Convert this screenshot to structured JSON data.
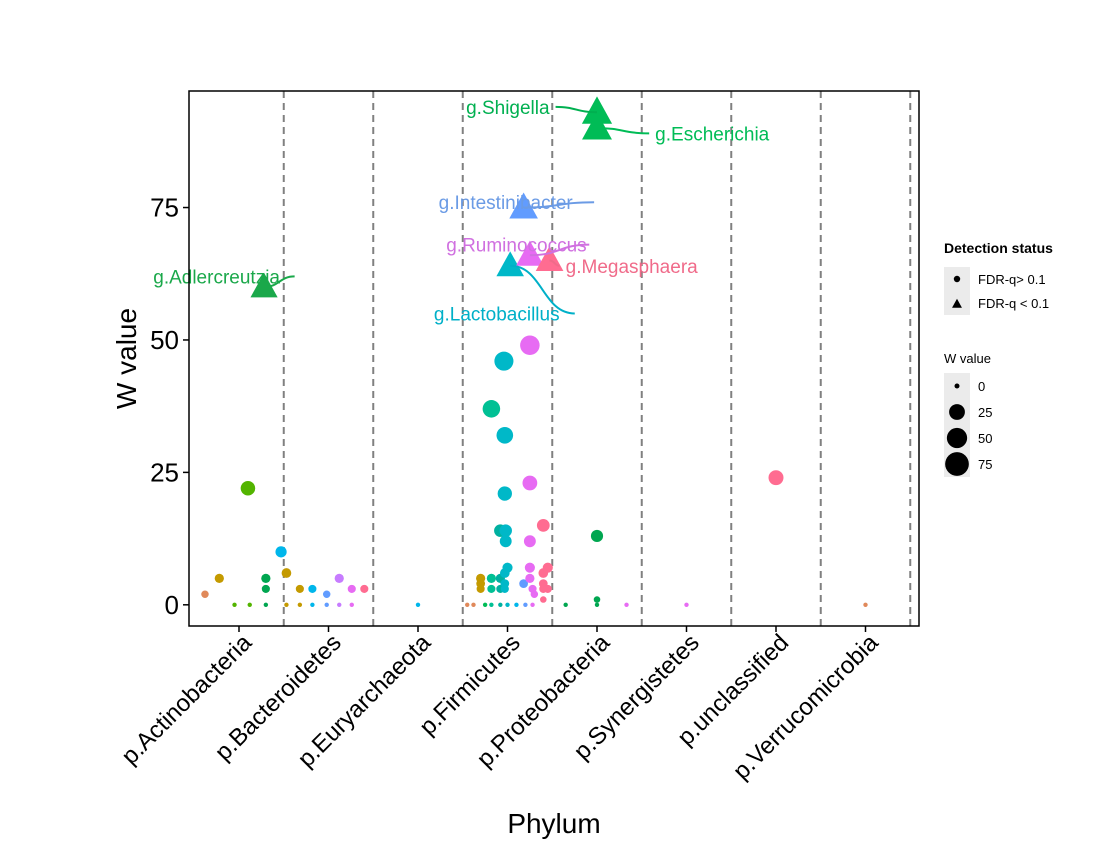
{
  "chart_data": {
    "type": "scatter",
    "title": "",
    "xlabel": "Phylum",
    "ylabel": "W value",
    "ylim": [
      -4,
      97
    ],
    "yticks": [
      0,
      25,
      50,
      75
    ],
    "categories": [
      "p.Actinobacteria",
      "p.Bacteroidetes",
      "p.Euryarchaeota",
      "p.Firmicutes",
      "p.Proteobacteria",
      "p.Synergistetes",
      "p.unclassified",
      "p.Verrucomicrobia"
    ],
    "colors": {
      "orange": "#e0895a",
      "olive": "#c49a00",
      "green": "#53b400",
      "teal": "#00c094",
      "cyan": "#00b6eb",
      "blue": "#619cff",
      "violet": "#c77cff",
      "magenta": "#e76bf3",
      "pink": "#ff6c91",
      "darkgreen": "#00a650",
      "tealgreen": "#00bc56",
      "darkteal": "#00b0a0",
      "lacto": "#00b8c8",
      "annoGreen": "#1aa84a",
      "annoGreen2": "#00b050",
      "annoBlue": "#6b9be5",
      "annoViolet": "#d070e0",
      "annoPink": "#f06b8a",
      "annoCyan": "#00b0c8"
    },
    "points": [
      {
        "c": 0,
        "o": -0.38,
        "y": 2,
        "col": "orange",
        "s": "circle"
      },
      {
        "c": 0,
        "o": -0.22,
        "y": 5,
        "col": "olive",
        "s": "circle"
      },
      {
        "c": 0,
        "o": -0.05,
        "y": 0,
        "col": "green",
        "s": "circle"
      },
      {
        "c": 0,
        "o": 0.12,
        "y": 0,
        "col": "green",
        "s": "circle"
      },
      {
        "c": 0,
        "o": 0.1,
        "y": 22,
        "col": "green",
        "s": "circle"
      },
      {
        "c": 0,
        "o": 0.3,
        "y": 0,
        "col": "darkgreen",
        "s": "circle"
      },
      {
        "c": 0,
        "o": 0.3,
        "y": 3,
        "col": "darkgreen",
        "s": "circle"
      },
      {
        "c": 0,
        "o": 0.3,
        "y": 5,
        "col": "darkgreen",
        "s": "circle"
      },
      {
        "c": 0,
        "o": 0.47,
        "y": 10,
        "col": "cyan",
        "s": "circle"
      },
      {
        "c": 0,
        "o": 0.28,
        "y": 60,
        "col": "annoGreen",
        "s": "triangle"
      },
      {
        "c": 1,
        "o": -0.47,
        "y": 6,
        "col": "olive",
        "s": "circle"
      },
      {
        "c": 1,
        "o": -0.47,
        "y": 0,
        "col": "olive",
        "s": "circle"
      },
      {
        "c": 1,
        "o": -0.32,
        "y": 3,
        "col": "olive",
        "s": "circle"
      },
      {
        "c": 1,
        "o": -0.32,
        "y": 0,
        "col": "olive",
        "s": "circle"
      },
      {
        "c": 1,
        "o": -0.18,
        "y": 3,
        "col": "cyan",
        "s": "circle"
      },
      {
        "c": 1,
        "o": -0.18,
        "y": 0,
        "col": "cyan",
        "s": "circle"
      },
      {
        "c": 1,
        "o": -0.02,
        "y": 2,
        "col": "blue",
        "s": "circle"
      },
      {
        "c": 1,
        "o": -0.02,
        "y": 0,
        "col": "blue",
        "s": "circle"
      },
      {
        "c": 1,
        "o": 0.12,
        "y": 5,
        "col": "violet",
        "s": "circle"
      },
      {
        "c": 1,
        "o": 0.12,
        "y": 0,
        "col": "violet",
        "s": "circle"
      },
      {
        "c": 1,
        "o": 0.26,
        "y": 3,
        "col": "magenta",
        "s": "circle"
      },
      {
        "c": 1,
        "o": 0.26,
        "y": 0,
        "col": "magenta",
        "s": "circle"
      },
      {
        "c": 1,
        "o": 0.4,
        "y": 3,
        "col": "pink",
        "s": "circle"
      },
      {
        "c": 2,
        "o": 0.0,
        "y": 0,
        "col": "cyan",
        "s": "circle"
      },
      {
        "c": 3,
        "o": -0.45,
        "y": 0,
        "col": "orange",
        "s": "circle"
      },
      {
        "c": 3,
        "o": -0.38,
        "y": 0,
        "col": "orange",
        "s": "circle"
      },
      {
        "c": 3,
        "o": -0.3,
        "y": 5,
        "col": "olive",
        "s": "circle"
      },
      {
        "c": 3,
        "o": -0.3,
        "y": 4,
        "col": "olive",
        "s": "circle"
      },
      {
        "c": 3,
        "o": -0.3,
        "y": 3,
        "col": "olive",
        "s": "circle"
      },
      {
        "c": 3,
        "o": -0.25,
        "y": 0,
        "col": "tealgreen",
        "s": "circle"
      },
      {
        "c": 3,
        "o": -0.18,
        "y": 37,
        "col": "teal",
        "s": "circle"
      },
      {
        "c": 3,
        "o": -0.18,
        "y": 5,
        "col": "teal",
        "s": "circle"
      },
      {
        "c": 3,
        "o": -0.18,
        "y": 3,
        "col": "teal",
        "s": "circle"
      },
      {
        "c": 3,
        "o": -0.18,
        "y": 0,
        "col": "teal",
        "s": "circle"
      },
      {
        "c": 3,
        "o": -0.08,
        "y": 14,
        "col": "darkteal",
        "s": "circle"
      },
      {
        "c": 3,
        "o": -0.08,
        "y": 5,
        "col": "darkteal",
        "s": "circle"
      },
      {
        "c": 3,
        "o": -0.08,
        "y": 3,
        "col": "darkteal",
        "s": "circle"
      },
      {
        "c": 3,
        "o": -0.08,
        "y": 0,
        "col": "darkteal",
        "s": "circle"
      },
      {
        "c": 3,
        "o": -0.04,
        "y": 46,
        "col": "lacto",
        "s": "circle"
      },
      {
        "c": 3,
        "o": -0.03,
        "y": 32,
        "col": "lacto",
        "s": "circle"
      },
      {
        "c": 3,
        "o": -0.03,
        "y": 21,
        "col": "lacto",
        "s": "circle"
      },
      {
        "c": 3,
        "o": -0.02,
        "y": 14,
        "col": "lacto",
        "s": "circle"
      },
      {
        "c": 3,
        "o": -0.02,
        "y": 12,
        "col": "lacto",
        "s": "circle"
      },
      {
        "c": 3,
        "o": 0.0,
        "y": 7,
        "col": "lacto",
        "s": "circle"
      },
      {
        "c": 3,
        "o": -0.03,
        "y": 6,
        "col": "lacto",
        "s": "circle"
      },
      {
        "c": 3,
        "o": -0.03,
        "y": 4,
        "col": "lacto",
        "s": "circle"
      },
      {
        "c": 3,
        "o": -0.03,
        "y": 3,
        "col": "lacto",
        "s": "circle"
      },
      {
        "c": 3,
        "o": 0.0,
        "y": 0,
        "col": "lacto",
        "s": "circle"
      },
      {
        "c": 3,
        "o": 0.1,
        "y": 0,
        "col": "cyan",
        "s": "circle"
      },
      {
        "c": 3,
        "o": 0.18,
        "y": 4,
        "col": "blue",
        "s": "circle"
      },
      {
        "c": 3,
        "o": 0.2,
        "y": 0,
        "col": "blue",
        "s": "circle"
      },
      {
        "c": 3,
        "o": 0.25,
        "y": 49,
        "col": "magenta",
        "s": "circle"
      },
      {
        "c": 3,
        "o": 0.25,
        "y": 23,
        "col": "magenta",
        "s": "circle"
      },
      {
        "c": 3,
        "o": 0.25,
        "y": 12,
        "col": "magenta",
        "s": "circle"
      },
      {
        "c": 3,
        "o": 0.25,
        "y": 7,
        "col": "magenta",
        "s": "circle"
      },
      {
        "c": 3,
        "o": 0.25,
        "y": 5,
        "col": "magenta",
        "s": "circle"
      },
      {
        "c": 3,
        "o": 0.28,
        "y": 3,
        "col": "magenta",
        "s": "circle"
      },
      {
        "c": 3,
        "o": 0.3,
        "y": 2,
        "col": "magenta",
        "s": "circle"
      },
      {
        "c": 3,
        "o": 0.28,
        "y": 0,
        "col": "magenta",
        "s": "circle"
      },
      {
        "c": 3,
        "o": 0.4,
        "y": 15,
        "col": "pink",
        "s": "circle"
      },
      {
        "c": 3,
        "o": 0.4,
        "y": 6,
        "col": "pink",
        "s": "circle"
      },
      {
        "c": 3,
        "o": 0.4,
        "y": 4,
        "col": "pink",
        "s": "circle"
      },
      {
        "c": 3,
        "o": 0.4,
        "y": 3,
        "col": "pink",
        "s": "circle"
      },
      {
        "c": 3,
        "o": 0.45,
        "y": 7,
        "col": "pink",
        "s": "circle"
      },
      {
        "c": 3,
        "o": 0.45,
        "y": 3,
        "col": "pink",
        "s": "circle"
      },
      {
        "c": 3,
        "o": 0.4,
        "y": 1,
        "col": "pink",
        "s": "circle"
      },
      {
        "c": 3,
        "o": 0.03,
        "y": 64,
        "col": "lacto",
        "s": "triangle"
      },
      {
        "c": 3,
        "o": 0.25,
        "y": 66,
        "col": "magenta",
        "s": "triangle"
      },
      {
        "c": 3,
        "o": 0.18,
        "y": 75,
        "col": "blue",
        "s": "triangle"
      },
      {
        "c": 3,
        "o": 0.47,
        "y": 65,
        "col": "pink",
        "s": "triangle"
      },
      {
        "c": 4,
        "o": -0.35,
        "y": 0,
        "col": "darkgreen",
        "s": "circle"
      },
      {
        "c": 4,
        "o": 0.0,
        "y": 13,
        "col": "darkgreen",
        "s": "circle"
      },
      {
        "c": 4,
        "o": 0.0,
        "y": 1,
        "col": "darkgreen",
        "s": "circle"
      },
      {
        "c": 4,
        "o": 0.0,
        "y": 0,
        "col": "darkgreen",
        "s": "circle"
      },
      {
        "c": 4,
        "o": 0.33,
        "y": 0,
        "col": "magenta",
        "s": "circle"
      },
      {
        "c": 4,
        "o": 0.0,
        "y": 93,
        "col": "tealgreen",
        "s": "triangle"
      },
      {
        "c": 4,
        "o": 0.0,
        "y": 90,
        "col": "tealgreen",
        "s": "triangle"
      },
      {
        "c": 5,
        "o": 0.0,
        "y": 0,
        "col": "magenta",
        "s": "circle"
      },
      {
        "c": 6,
        "o": 0.0,
        "y": 24,
        "col": "pink",
        "s": "circle"
      },
      {
        "c": 7,
        "o": 0.0,
        "y": 0,
        "col": "orange",
        "s": "circle"
      }
    ],
    "annotations": [
      {
        "text": "g.Shigella",
        "col": "annoGreen2",
        "pt": 75,
        "tc": 3.47,
        "ty": 94,
        "anchor": "end",
        "size": 19
      },
      {
        "text": "g.Escherichia",
        "col": "tealgreen",
        "pt": 76,
        "tc": 4.65,
        "ty": 89,
        "anchor": "start",
        "size": 22
      },
      {
        "text": "g.Intestinibacter",
        "col": "annoBlue",
        "pt": 68,
        "tc": 2.98,
        "ty": 76,
        "anchor": "middle",
        "size": 19
      },
      {
        "text": "g.Ruminococcus",
        "col": "annoViolet",
        "pt": 67,
        "tc": 3.1,
        "ty": 68,
        "anchor": "middle",
        "size": 19
      },
      {
        "text": "g.Megasphaera",
        "col": "annoPink",
        "pt": 69,
        "tc": 3.65,
        "ty": 64,
        "anchor": "start",
        "size": 19
      },
      {
        "text": "g.Lactobacillus",
        "col": "annoCyan",
        "pt": 66,
        "tc": 2.88,
        "ty": 55,
        "anchor": "middle",
        "size": 19
      },
      {
        "text": "g.Adlercreutzia",
        "col": "annoGreen",
        "pt": 9,
        "tc": -0.25,
        "ty": 62,
        "anchor": "middle",
        "size": 19
      }
    ],
    "legend": {
      "shape_title": "Detection status",
      "shape_items": [
        "FDR-q> 0.1",
        "FDR-q < 0.1"
      ],
      "size_title": "W value",
      "size_items": [
        "0",
        "25",
        "50",
        "75"
      ]
    }
  }
}
